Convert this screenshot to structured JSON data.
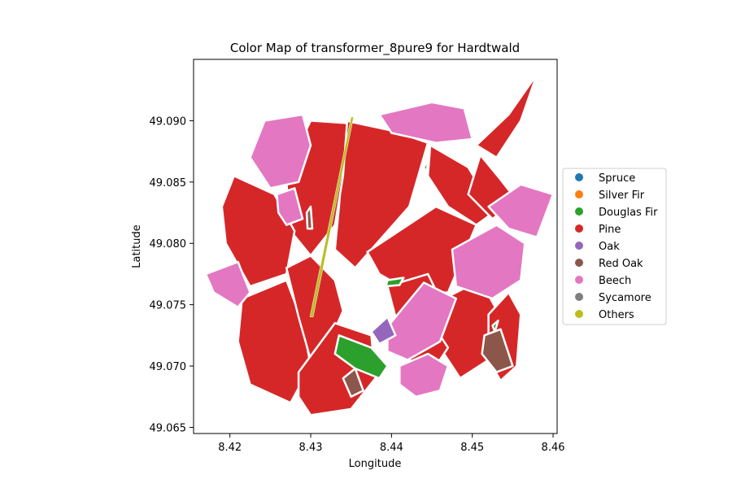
{
  "chart_data": {
    "type": "map",
    "title": "Color Map of transformer_8pure9 for Hardtwald",
    "xlabel": "Longitude",
    "ylabel": "Latitude",
    "xlim": [
      8.4155,
      8.4605
    ],
    "ylim": [
      49.0645,
      49.095
    ],
    "xticks": [
      8.42,
      8.43,
      8.44,
      8.45,
      8.46
    ],
    "yticks": [
      49.065,
      49.07,
      49.075,
      49.08,
      49.085,
      49.09
    ],
    "xtick_labels": [
      "8.42",
      "8.43",
      "8.44",
      "8.45",
      "8.46"
    ],
    "ytick_labels": [
      "49.065",
      "49.070",
      "49.075",
      "49.080",
      "49.085",
      "49.090"
    ],
    "legend_position": "right",
    "legend": [
      {
        "label": "Spruce",
        "color": "#1f77b4"
      },
      {
        "label": "Silver Fir",
        "color": "#ff7f0e"
      },
      {
        "label": "Douglas Fir",
        "color": "#2ca02c"
      },
      {
        "label": "Pine",
        "color": "#d62728"
      },
      {
        "label": "Oak",
        "color": "#9467bd"
      },
      {
        "label": "Red Oak",
        "color": "#8c564b"
      },
      {
        "label": "Beech",
        "color": "#e377c2"
      },
      {
        "label": "Sycamore",
        "color": "#7f7f7f"
      },
      {
        "label": "Others",
        "color": "#bcbd22"
      }
    ],
    "polygons": [
      {
        "species": "Pine",
        "coords": [
          [
            8.4343,
            49.09
          ],
          [
            8.44,
            49.0892
          ],
          [
            8.4445,
            49.0882
          ],
          [
            8.4422,
            49.083
          ],
          [
            8.4375,
            49.0795
          ],
          [
            8.4355,
            49.078
          ],
          [
            8.433,
            49.0795
          ],
          [
            8.4335,
            49.083
          ],
          [
            8.434,
            49.087
          ]
        ]
      },
      {
        "species": "Pine",
        "coords": [
          [
            8.4448,
            49.088
          ],
          [
            8.4495,
            49.0862
          ],
          [
            8.4528,
            49.0826
          ],
          [
            8.4505,
            49.0815
          ],
          [
            8.447,
            49.083
          ],
          [
            8.4445,
            49.0855
          ]
        ]
      },
      {
        "species": "Pine",
        "coords": [
          [
            8.437,
            49.0793
          ],
          [
            8.4455,
            49.083
          ],
          [
            8.4505,
            49.0815
          ],
          [
            8.447,
            49.076
          ],
          [
            8.4425,
            49.076
          ],
          [
            8.4385,
            49.0775
          ]
        ]
      },
      {
        "species": "Pine",
        "coords": [
          [
            8.4505,
            49.088
          ],
          [
            8.4545,
            49.0905
          ],
          [
            8.458,
            49.0938
          ],
          [
            8.456,
            49.09
          ],
          [
            8.453,
            49.087
          ]
        ]
      },
      {
        "species": "Pine",
        "coords": [
          [
            8.451,
            49.0872
          ],
          [
            8.4535,
            49.0852
          ],
          [
            8.4555,
            49.0835
          ],
          [
            8.4525,
            49.082
          ],
          [
            8.4495,
            49.084
          ]
        ]
      },
      {
        "species": "Pine",
        "coords": [
          [
            8.43,
            49.09
          ],
          [
            8.4345,
            49.0898
          ],
          [
            8.434,
            49.0855
          ],
          [
            8.433,
            49.0815
          ],
          [
            8.43,
            49.079
          ],
          [
            8.4275,
            49.081
          ],
          [
            8.427,
            49.085
          ],
          [
            8.4285,
            49.088
          ]
        ]
      },
      {
        "species": "Pine",
        "coords": [
          [
            8.4205,
            49.0855
          ],
          [
            8.4255,
            49.084
          ],
          [
            8.428,
            49.081
          ],
          [
            8.427,
            49.0775
          ],
          [
            8.4225,
            49.0765
          ],
          [
            8.4195,
            49.08
          ],
          [
            8.419,
            49.083
          ]
        ]
      },
      {
        "species": "Pine",
        "coords": [
          [
            8.4215,
            49.0755
          ],
          [
            8.427,
            49.077
          ],
          [
            8.429,
            49.0735
          ],
          [
            8.43,
            49.07
          ],
          [
            8.4275,
            49.067
          ],
          [
            8.4225,
            49.0685
          ],
          [
            8.421,
            49.072
          ]
        ]
      },
      {
        "species": "Pine",
        "coords": [
          [
            8.427,
            49.078
          ],
          [
            8.43,
            49.079
          ],
          [
            8.433,
            49.077
          ],
          [
            8.434,
            49.0745
          ],
          [
            8.432,
            49.0715
          ],
          [
            8.43,
            49.0705
          ],
          [
            8.4285,
            49.074
          ]
        ]
      },
      {
        "species": "Pine",
        "coords": [
          [
            8.4285,
            49.0695
          ],
          [
            8.433,
            49.0735
          ],
          [
            8.4375,
            49.0725
          ],
          [
            8.438,
            49.069
          ],
          [
            8.435,
            49.0665
          ],
          [
            8.43,
            49.066
          ],
          [
            8.4285,
            49.0675
          ]
        ]
      },
      {
        "species": "Pine",
        "coords": [
          [
            8.4465,
            49.0755
          ],
          [
            8.451,
            49.077
          ],
          [
            8.4535,
            49.074
          ],
          [
            8.452,
            49.0705
          ],
          [
            8.4485,
            49.069
          ],
          [
            8.446,
            49.0715
          ]
        ]
      },
      {
        "species": "Pine",
        "coords": [
          [
            8.452,
            49.0742
          ],
          [
            8.4545,
            49.076
          ],
          [
            8.456,
            49.0742
          ],
          [
            8.4555,
            49.07
          ],
          [
            8.4535,
            49.0688
          ],
          [
            8.452,
            49.0705
          ]
        ]
      },
      {
        "species": "Pine",
        "coords": [
          [
            8.4395,
            49.0765
          ],
          [
            8.4445,
            49.0775
          ],
          [
            8.446,
            49.0755
          ],
          [
            8.444,
            49.0735
          ],
          [
            8.4405,
            49.074
          ]
        ]
      },
      {
        "species": "Pine",
        "coords": [
          [
            8.441,
            49.073
          ],
          [
            8.445,
            49.0735
          ],
          [
            8.447,
            49.0715
          ],
          [
            8.4455,
            49.07
          ],
          [
            8.442,
            49.0705
          ]
        ]
      },
      {
        "species": "Beech",
        "coords": [
          [
            8.4243,
            49.09
          ],
          [
            8.429,
            49.0905
          ],
          [
            8.43,
            49.088
          ],
          [
            8.4285,
            49.085
          ],
          [
            8.425,
            49.0845
          ],
          [
            8.4225,
            49.087
          ]
        ]
      },
      {
        "species": "Beech",
        "coords": [
          [
            8.4385,
            49.0905
          ],
          [
            8.445,
            49.0915
          ],
          [
            8.449,
            49.091
          ],
          [
            8.45,
            49.0885
          ],
          [
            8.4455,
            49.0882
          ],
          [
            8.44,
            49.089
          ]
        ]
      },
      {
        "species": "Beech",
        "coords": [
          [
            8.452,
            49.083
          ],
          [
            8.456,
            49.0848
          ],
          [
            8.46,
            49.084
          ],
          [
            8.458,
            49.0805
          ],
          [
            8.4545,
            49.0812
          ]
        ]
      },
      {
        "species": "Beech",
        "coords": [
          [
            8.4475,
            49.0795
          ],
          [
            8.453,
            49.0815
          ],
          [
            8.4565,
            49.08
          ],
          [
            8.456,
            49.077
          ],
          [
            8.4525,
            49.0755
          ],
          [
            8.448,
            49.0765
          ]
        ]
      },
      {
        "species": "Beech",
        "coords": [
          [
            8.4395,
            49.0732
          ],
          [
            8.444,
            49.0768
          ],
          [
            8.448,
            49.0755
          ],
          [
            8.446,
            49.072
          ],
          [
            8.442,
            49.0705
          ],
          [
            8.4395,
            49.0712
          ]
        ]
      },
      {
        "species": "Beech",
        "coords": [
          [
            8.441,
            49.07
          ],
          [
            8.4445,
            49.071
          ],
          [
            8.447,
            49.07
          ],
          [
            8.446,
            49.068
          ],
          [
            8.443,
            49.0675
          ],
          [
            8.441,
            49.0685
          ]
        ]
      },
      {
        "species": "Beech",
        "coords": [
          [
            8.417,
            49.0775
          ],
          [
            8.421,
            49.0785
          ],
          [
            8.4225,
            49.076
          ],
          [
            8.421,
            49.0748
          ],
          [
            8.418,
            49.076
          ]
        ]
      },
      {
        "species": "Beech",
        "coords": [
          [
            8.4258,
            49.084
          ],
          [
            8.428,
            49.0845
          ],
          [
            8.429,
            49.082
          ],
          [
            8.427,
            49.0815
          ],
          [
            8.426,
            49.0825
          ]
        ]
      },
      {
        "species": "Douglas Fir",
        "coords": [
          [
            8.4335,
            49.0725
          ],
          [
            8.4375,
            49.0715
          ],
          [
            8.4395,
            49.07
          ],
          [
            8.4385,
            49.069
          ],
          [
            8.4355,
            49.0698
          ],
          [
            8.433,
            49.071
          ]
        ]
      },
      {
        "species": "Douglas Fir",
        "coords": [
          [
            8.4395,
            49.077
          ],
          [
            8.4415,
            49.0772
          ],
          [
            8.441,
            49.0766
          ],
          [
            8.4393,
            49.0765
          ]
        ]
      },
      {
        "species": "Douglas Fir",
        "coords": [
          [
            8.444,
            49.0862
          ],
          [
            8.4446,
            49.0868
          ],
          [
            8.4443,
            49.0858
          ]
        ]
      },
      {
        "species": "Douglas Fir",
        "coords": [
          [
            8.4525,
            49.0733
          ],
          [
            8.4532,
            49.0737
          ],
          [
            8.4528,
            49.0728
          ]
        ]
      },
      {
        "species": "Oak",
        "coords": [
          [
            8.4375,
            49.0728
          ],
          [
            8.4395,
            49.074
          ],
          [
            8.4405,
            49.0725
          ],
          [
            8.4385,
            49.0718
          ]
        ]
      },
      {
        "species": "Red Oak",
        "coords": [
          [
            8.4515,
            49.0725
          ],
          [
            8.4535,
            49.073
          ],
          [
            8.455,
            49.07
          ],
          [
            8.453,
            49.0695
          ],
          [
            8.4512,
            49.071
          ]
        ]
      },
      {
        "species": "Red Oak",
        "coords": [
          [
            8.434,
            49.069
          ],
          [
            8.4355,
            49.0698
          ],
          [
            8.4365,
            49.068
          ],
          [
            8.435,
            49.0675
          ]
        ]
      },
      {
        "species": "Red Oak",
        "coords": [
          [
            8.4295,
            49.0825
          ],
          [
            8.43,
            49.083
          ],
          [
            8.4302,
            49.0812
          ],
          [
            8.4296,
            49.0812
          ]
        ]
      },
      {
        "species": "Others",
        "coords": [
          [
            8.435,
            49.0903
          ],
          [
            8.4353,
            49.0903
          ],
          [
            8.4303,
            49.074
          ],
          [
            8.4299,
            49.074
          ]
        ]
      }
    ]
  }
}
